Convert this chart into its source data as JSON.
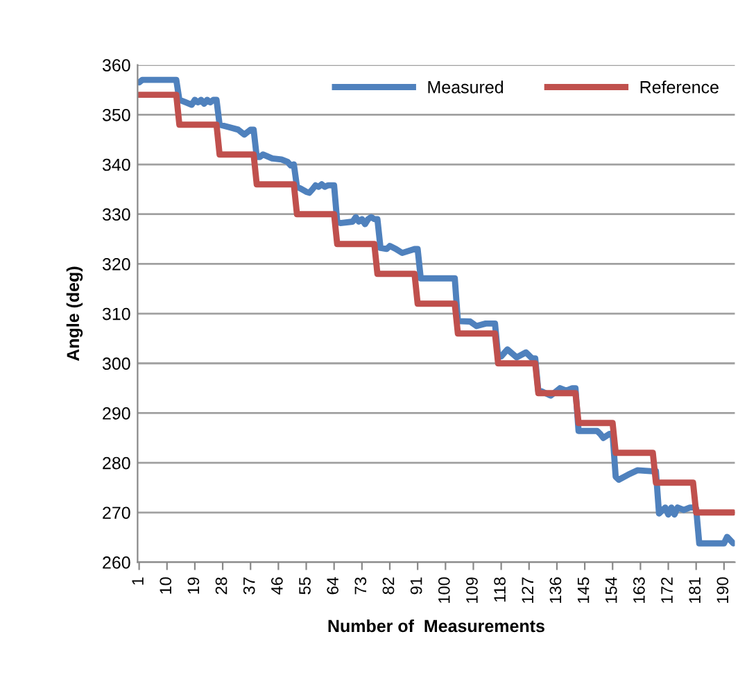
{
  "chart_data": {
    "type": "line",
    "xlabel": "Number of  Measurements",
    "ylabel": "Angle (deg)",
    "xlim": [
      0.5,
      193.5
    ],
    "xticks": [
      1,
      10,
      19,
      28,
      37,
      46,
      55,
      64,
      73,
      82,
      91,
      100,
      109,
      118,
      127,
      136,
      145,
      154,
      163,
      172,
      181,
      190
    ],
    "ylim": [
      260,
      360
    ],
    "yticks": [
      260,
      270,
      280,
      290,
      300,
      310,
      320,
      330,
      340,
      350,
      360
    ],
    "grid": "y",
    "legend": "top right",
    "marker": "none",
    "line_style": "solid",
    "series": [
      {
        "name": "Measured",
        "color": "#4f81bd",
        "x": [
          1,
          2,
          13,
          14,
          16,
          18,
          19,
          20,
          21,
          22,
          23,
          24,
          25,
          26,
          27,
          30,
          33,
          34,
          35,
          37,
          38,
          39,
          40,
          41,
          44,
          47,
          49,
          50,
          51,
          52,
          53,
          55,
          56,
          57,
          58,
          59,
          60,
          61,
          62,
          64,
          65,
          66,
          70,
          71,
          72,
          73,
          74,
          75,
          76,
          77,
          78,
          79,
          81,
          82,
          84,
          86,
          90,
          91,
          92,
          103,
          104,
          108,
          110,
          113,
          115,
          116,
          117,
          118,
          120,
          123,
          126,
          128,
          129,
          130,
          131,
          134,
          137,
          139,
          141,
          142,
          143,
          149,
          150,
          151,
          153,
          154,
          155,
          156,
          159,
          162,
          167,
          168,
          169,
          171,
          172,
          173,
          174,
          175,
          177,
          179,
          180,
          181,
          182,
          190,
          191,
          193
        ],
        "values": [
          356.5,
          357,
          357,
          353,
          352.5,
          352,
          353,
          352.5,
          353,
          352.2,
          353,
          352.5,
          353,
          353,
          348,
          347.5,
          347,
          346.5,
          346,
          347,
          347,
          341.5,
          341.5,
          342,
          341.2,
          341,
          340.5,
          339.8,
          340,
          335.5,
          335.2,
          334.5,
          334.3,
          335,
          335.8,
          335.5,
          336,
          335.5,
          335.8,
          335.8,
          328.5,
          328.2,
          328.5,
          329.4,
          328.5,
          329,
          328,
          329,
          329.4,
          329,
          329,
          323.2,
          323,
          323.6,
          323,
          322.2,
          323,
          323,
          317.1,
          317.1,
          308.5,
          308.4,
          307.5,
          308,
          308,
          308,
          301.4,
          301.4,
          302.8,
          301.2,
          302.2,
          301,
          301,
          294.4,
          294.4,
          293.5,
          295,
          294.5,
          295,
          295,
          286.4,
          286.4,
          285.8,
          285,
          285.8,
          285.8,
          277.2,
          276.6,
          277.6,
          278.5,
          278.3,
          278.3,
          269.8,
          271,
          269.6,
          271,
          269.6,
          271,
          270.5,
          271,
          271,
          270.8,
          263.8,
          263.8,
          265.1,
          263.8
        ]
      },
      {
        "name": "Reference",
        "color": "#c0504d",
        "x": [
          1,
          13,
          14,
          26,
          27,
          38,
          39,
          51,
          52,
          64,
          65,
          77,
          78,
          90,
          91,
          103,
          104,
          116,
          117,
          129,
          130,
          142,
          143,
          154,
          155,
          167,
          168,
          180,
          181,
          193
        ],
        "values": [
          354,
          354,
          348,
          348,
          342,
          342,
          336,
          336,
          330,
          330,
          324,
          324,
          318,
          318,
          312,
          312,
          306,
          306,
          300,
          300,
          294,
          294,
          288,
          288,
          282,
          282,
          276,
          276,
          270,
          270
        ]
      }
    ]
  }
}
